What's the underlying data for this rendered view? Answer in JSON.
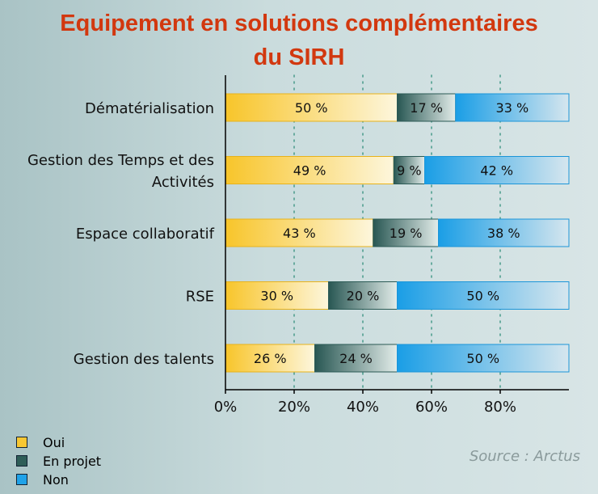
{
  "title_line1": "Equipement en solutions complémentaires",
  "title_line2": "du SIRH",
  "source": "Source : Arctus",
  "chart_data": {
    "type": "bar",
    "orientation": "horizontal",
    "stacked": "percent",
    "categories": [
      [
        "Dématérialisation"
      ],
      [
        "Gestion des Temps et des",
        "Activités"
      ],
      [
        "Espace collaboratif"
      ],
      [
        "RSE"
      ],
      [
        "Gestion des talents"
      ]
    ],
    "series": [
      {
        "name": "Oui",
        "values": [
          50,
          49,
          43,
          30,
          26
        ],
        "labels": [
          "50 %",
          "49 %",
          "43 %",
          "30 %",
          "26 %"
        ],
        "color": "#f7c733"
      },
      {
        "name": "En projet",
        "values": [
          17,
          9,
          19,
          20,
          24
        ],
        "labels": [
          "17 %",
          "9 %",
          "19 %",
          "20 %",
          "24 %"
        ],
        "color": "#2f5e58"
      },
      {
        "name": "Non",
        "values": [
          33,
          42,
          38,
          50,
          50
        ],
        "labels": [
          "33 %",
          "42 %",
          "38 %",
          "50 %",
          "50 %"
        ],
        "color": "#1fa2e8"
      }
    ],
    "x_ticks": [
      "0%",
      "20%",
      "40%",
      "60%",
      "80%"
    ],
    "xlim": [
      0,
      100
    ],
    "grid": "vertical dotted",
    "legend_position": "bottom-left"
  }
}
